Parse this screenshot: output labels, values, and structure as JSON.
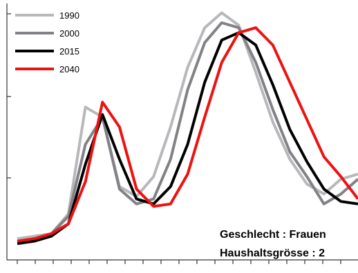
{
  "chart_data": {
    "type": "line",
    "x": [
      0,
      1,
      2,
      3,
      4,
      5,
      6,
      7,
      8,
      9,
      10,
      11,
      12,
      13,
      14,
      15,
      16,
      17,
      18,
      19,
      20
    ],
    "ylim": [
      0,
      100
    ],
    "grid": false,
    "legend_position": "top-left",
    "annotations": [
      "Geschlecht : Frauen",
      "Haushaltsgrösse : 2"
    ],
    "series": [
      {
        "name": "1990",
        "color": "#b8b8bc",
        "values": [
          8,
          9,
          10,
          18,
          61,
          57,
          29,
          25,
          33,
          53,
          77,
          93,
          99,
          94,
          75,
          55,
          40,
          30,
          26,
          32,
          34
        ]
      },
      {
        "name": "2000",
        "color": "#828286",
        "values": [
          7,
          8,
          10,
          17,
          46,
          57,
          28,
          22,
          24,
          40,
          68,
          87,
          95,
          93,
          79,
          60,
          43,
          33,
          22,
          26,
          32
        ]
      },
      {
        "name": "2015",
        "color": "#000000",
        "values": [
          6,
          7,
          9,
          14,
          38,
          58,
          40,
          24,
          22,
          29,
          46,
          71,
          88,
          91,
          86,
          70,
          52,
          39,
          28,
          23,
          22
        ]
      },
      {
        "name": "2040",
        "color": "#ee1111",
        "values": [
          7,
          8,
          10,
          14,
          31,
          63,
          53,
          28,
          21,
          22,
          34,
          57,
          79,
          91,
          93,
          86,
          71,
          56,
          41,
          33,
          24
        ]
      }
    ]
  }
}
